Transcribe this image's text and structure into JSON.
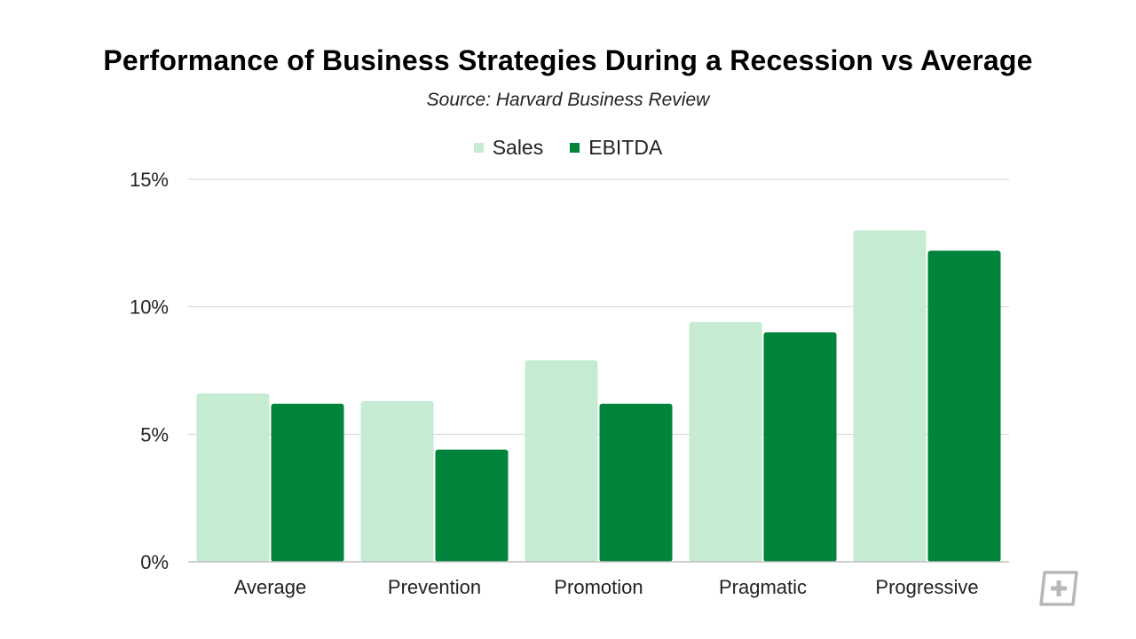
{
  "title": "Performance of Business Strategies During a Recession vs Average",
  "subtitle": "Source: Harvard Business Review",
  "colors": {
    "sales": "#c5ecd3",
    "ebitda": "#00833a",
    "grid": "#d6d6d6",
    "axis": "#bdbdbd",
    "logo": "#b8b8b8"
  },
  "logo_icon": "plus-box-logo-icon",
  "chart_data": {
    "type": "bar",
    "categories": [
      "Average",
      "Prevention",
      "Promotion",
      "Pragmatic",
      "Progressive"
    ],
    "series": [
      {
        "name": "Sales",
        "values": [
          6.6,
          6.3,
          7.9,
          9.4,
          13.0
        ]
      },
      {
        "name": "EBITDA",
        "values": [
          6.2,
          4.4,
          6.2,
          9.0,
          12.2
        ]
      }
    ],
    "y_ticks": [
      {
        "value": 0,
        "label": "0%"
      },
      {
        "value": 5,
        "label": "5%"
      },
      {
        "value": 10,
        "label": "10%"
      },
      {
        "value": 15,
        "label": "15%"
      }
    ],
    "ylim": [
      0,
      15
    ],
    "grid": true,
    "legend_position": "top-center"
  }
}
